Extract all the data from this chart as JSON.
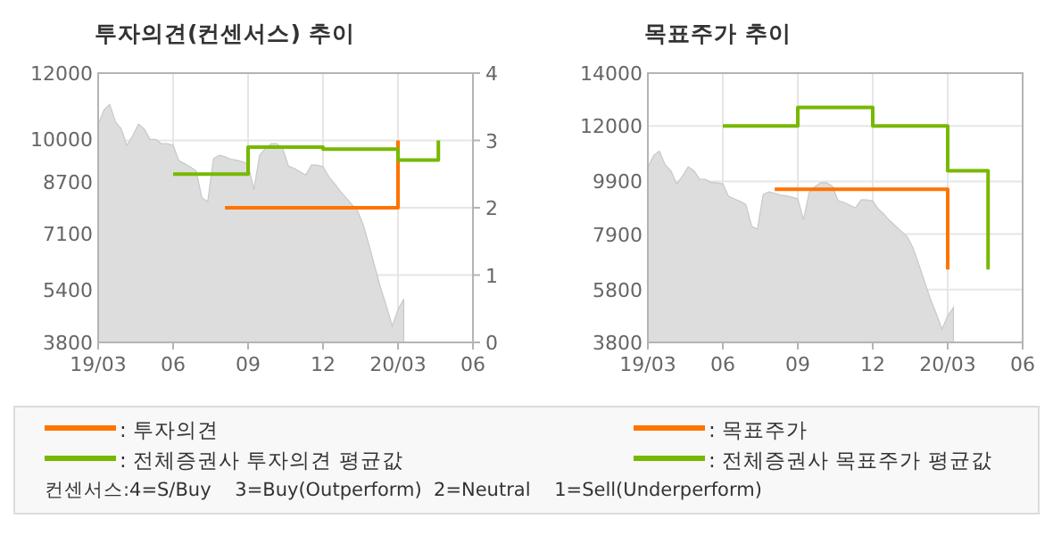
{
  "chart_data": [
    {
      "type": "step",
      "title": "투자의견(컨센서스) 추이",
      "categories": [
        "19/03",
        null,
        null,
        null,
        null,
        null,
        null,
        null,
        null,
        null,
        null,
        null,
        null,
        "06",
        null,
        null,
        null,
        null,
        null,
        null,
        null,
        null,
        null,
        null,
        null,
        null,
        "09",
        null,
        null,
        null,
        null,
        null,
        null,
        null,
        null,
        null,
        null,
        null,
        null,
        "12",
        null,
        null,
        null,
        null,
        null,
        null,
        null,
        null,
        null,
        null,
        null,
        null,
        "20/03",
        null,
        null,
        null,
        null,
        null,
        null,
        null,
        null,
        null,
        null,
        null,
        null,
        "06"
      ],
      "ylim": [
        3800,
        12000
      ],
      "yticks": [
        3800,
        5400,
        7100,
        8700,
        10000,
        12000
      ],
      "y2lim": [
        0,
        4
      ],
      "y2ticks": [
        0,
        1,
        2,
        3,
        4
      ],
      "grid": true,
      "legend": "bottom",
      "annotations": [
        "컨센서스:4=S/Buy    3=Buy(Outperform)  2=Neutral    1=Sell(Underperform)"
      ],
      "series": [
        {
          "type": "area",
          "color": "#dddddd",
          "values": [
            10430,
            10880,
            11050,
            10520,
            10300,
            9800,
            10100,
            10450,
            10300,
            9980,
            9980,
            9850,
            9850,
            9800,
            9330,
            9240,
            9140,
            9020,
            8200,
            8090,
            9400,
            9500,
            9450,
            9380,
            9350,
            9300,
            9240,
            8450,
            9500,
            9700,
            9850,
            9850,
            9710,
            9170,
            9100,
            9000,
            8900,
            9200,
            9200,
            9150,
            8850,
            8640,
            8400,
            8200,
            8000,
            7800,
            7370,
            6750,
            6100,
            5450,
            4900,
            4300,
            4800,
            5120,
            null,
            null,
            null,
            null,
            null,
            null,
            null,
            null,
            null,
            null,
            null,
            null
          ]
        },
        {
          "name": ": 투자의견",
          "type": "step",
          "axis": "y2",
          "color": "#ff7300",
          "values": [
            null,
            null,
            null,
            null,
            null,
            null,
            null,
            null,
            null,
            null,
            null,
            null,
            null,
            null,
            null,
            null,
            null,
            null,
            null,
            null,
            null,
            null,
            2,
            2,
            2,
            2,
            2,
            2,
            2,
            2,
            2,
            2,
            2,
            2,
            2,
            2,
            2,
            2,
            2,
            2,
            2,
            2,
            2,
            2,
            2,
            2,
            2,
            2,
            2,
            2,
            2,
            2,
            3,
            null,
            null,
            null,
            null,
            null,
            null,
            null,
            null,
            null,
            null,
            null,
            null,
            null
          ]
        },
        {
          "name": ": 전체증권사 투자의견 평균값",
          "type": "step",
          "axis": "y2",
          "color": "#77b800",
          "values": [
            null,
            null,
            null,
            null,
            null,
            null,
            null,
            null,
            null,
            null,
            null,
            null,
            null,
            2.5,
            2.5,
            2.5,
            2.5,
            2.5,
            2.5,
            2.5,
            2.5,
            2.5,
            2.5,
            2.5,
            2.5,
            2.5,
            2.9,
            2.9,
            2.9,
            2.9,
            2.9,
            2.9,
            2.9,
            2.9,
            2.9,
            2.9,
            2.9,
            2.9,
            2.9,
            2.87,
            2.87,
            2.87,
            2.87,
            2.87,
            2.87,
            2.87,
            2.87,
            2.87,
            2.87,
            2.87,
            2.87,
            2.87,
            2.71,
            2.71,
            2.71,
            2.71,
            2.71,
            2.71,
            2.71,
            3,
            null,
            null,
            null,
            null,
            null,
            null
          ]
        }
      ]
    },
    {
      "type": "step",
      "title": "목표주가 추이",
      "categories": [
        "19/03",
        null,
        null,
        null,
        null,
        null,
        null,
        null,
        null,
        null,
        null,
        null,
        null,
        "06",
        null,
        null,
        null,
        null,
        null,
        null,
        null,
        null,
        null,
        null,
        null,
        null,
        "09",
        null,
        null,
        null,
        null,
        null,
        null,
        null,
        null,
        null,
        null,
        null,
        null,
        "12",
        null,
        null,
        null,
        null,
        null,
        null,
        null,
        null,
        null,
        null,
        null,
        null,
        "20/03",
        null,
        null,
        null,
        null,
        null,
        null,
        null,
        null,
        null,
        null,
        null,
        null,
        "06"
      ],
      "ylim": [
        3800,
        14000
      ],
      "yticks": [
        3800,
        5800,
        7900,
        9900,
        12000,
        14000
      ],
      "grid": true,
      "legend": "bottom",
      "series": [
        {
          "type": "area",
          "color": "#dddddd",
          "values": [
            10430,
            10880,
            11050,
            10520,
            10300,
            9800,
            10100,
            10450,
            10300,
            9980,
            9980,
            9850,
            9850,
            9800,
            9330,
            9240,
            9140,
            9020,
            8200,
            8090,
            9400,
            9500,
            9450,
            9380,
            9350,
            9300,
            9240,
            8450,
            9500,
            9700,
            9850,
            9850,
            9710,
            9170,
            9100,
            9000,
            8900,
            9200,
            9200,
            9150,
            8850,
            8640,
            8400,
            8200,
            8000,
            7800,
            7370,
            6750,
            6100,
            5450,
            4900,
            4300,
            4800,
            5120,
            null,
            null,
            null,
            null,
            null,
            null,
            null,
            null,
            null,
            null,
            null,
            null
          ]
        },
        {
          "name": ": 목표주가",
          "type": "step",
          "color": "#ff7300",
          "values": [
            null,
            null,
            null,
            null,
            null,
            null,
            null,
            null,
            null,
            null,
            null,
            null,
            null,
            null,
            null,
            null,
            null,
            null,
            null,
            null,
            null,
            null,
            9600,
            9600,
            9600,
            9600,
            9600,
            9600,
            9600,
            9600,
            9600,
            9600,
            9600,
            9600,
            9600,
            9600,
            9600,
            9600,
            9600,
            9600,
            9600,
            9600,
            9600,
            9600,
            9600,
            9600,
            9600,
            9600,
            9600,
            9600,
            9600,
            9600,
            6560,
            null,
            null,
            null,
            null,
            null,
            null,
            null,
            null,
            null,
            null,
            null,
            null,
            null
          ]
        },
        {
          "name": ": 전체증권사 목표주가 평균값",
          "type": "step",
          "color": "#77b800",
          "values": [
            null,
            null,
            null,
            null,
            null,
            null,
            null,
            null,
            null,
            null,
            null,
            null,
            null,
            12000,
            12000,
            12000,
            12000,
            12000,
            12000,
            12000,
            12000,
            12000,
            12000,
            12000,
            12000,
            12000,
            12700,
            12700,
            12700,
            12700,
            12700,
            12700,
            12700,
            12700,
            12700,
            12700,
            12700,
            12700,
            12700,
            12000,
            12000,
            12000,
            12000,
            12000,
            12000,
            12000,
            12000,
            12000,
            12000,
            12000,
            12000,
            12000,
            10300,
            10300,
            10300,
            10300,
            10300,
            10300,
            10300,
            6560,
            null,
            null,
            null,
            null,
            null,
            null
          ]
        }
      ]
    }
  ]
}
